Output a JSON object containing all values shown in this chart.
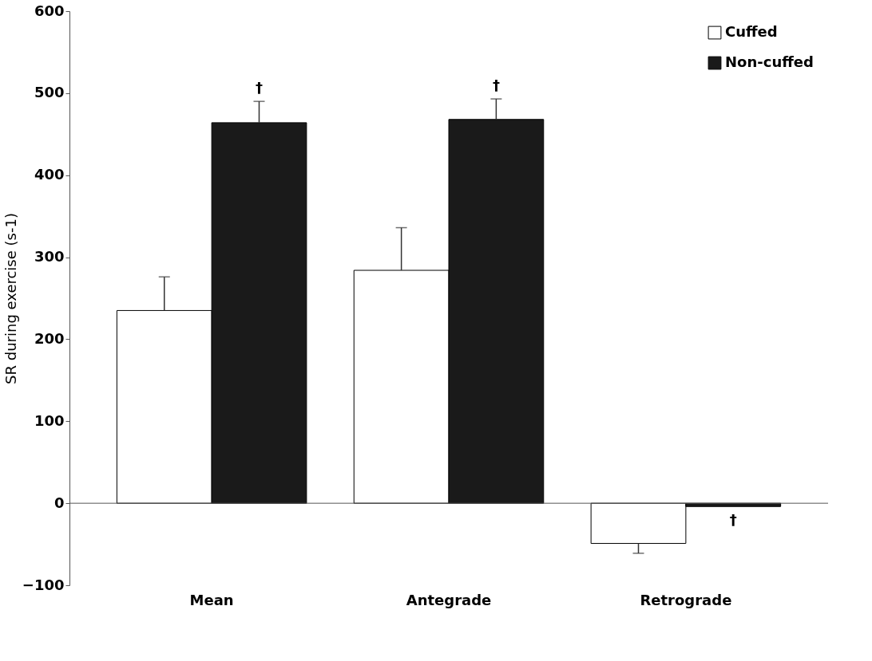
{
  "chart_data": {
    "type": "bar",
    "ylabel": "SR during exercise (s-1)",
    "categories": [
      "Mean",
      "Antegrade",
      "Retrograde"
    ],
    "series": [
      {
        "name": "Cuffed",
        "color": "#ffffff",
        "values": [
          235,
          284,
          -49
        ],
        "errors": [
          41,
          52,
          12
        ]
      },
      {
        "name": "Non-cuffed",
        "color": "#1a1a1a",
        "values": [
          464,
          468,
          -4
        ],
        "errors": [
          26,
          25,
          null
        ]
      }
    ],
    "ylim": [
      -100,
      600
    ],
    "yticks": [
      -100,
      0,
      100,
      200,
      300,
      400,
      500,
      600
    ],
    "annotations": [
      "†",
      "†",
      "†"
    ],
    "legend": "top right"
  }
}
